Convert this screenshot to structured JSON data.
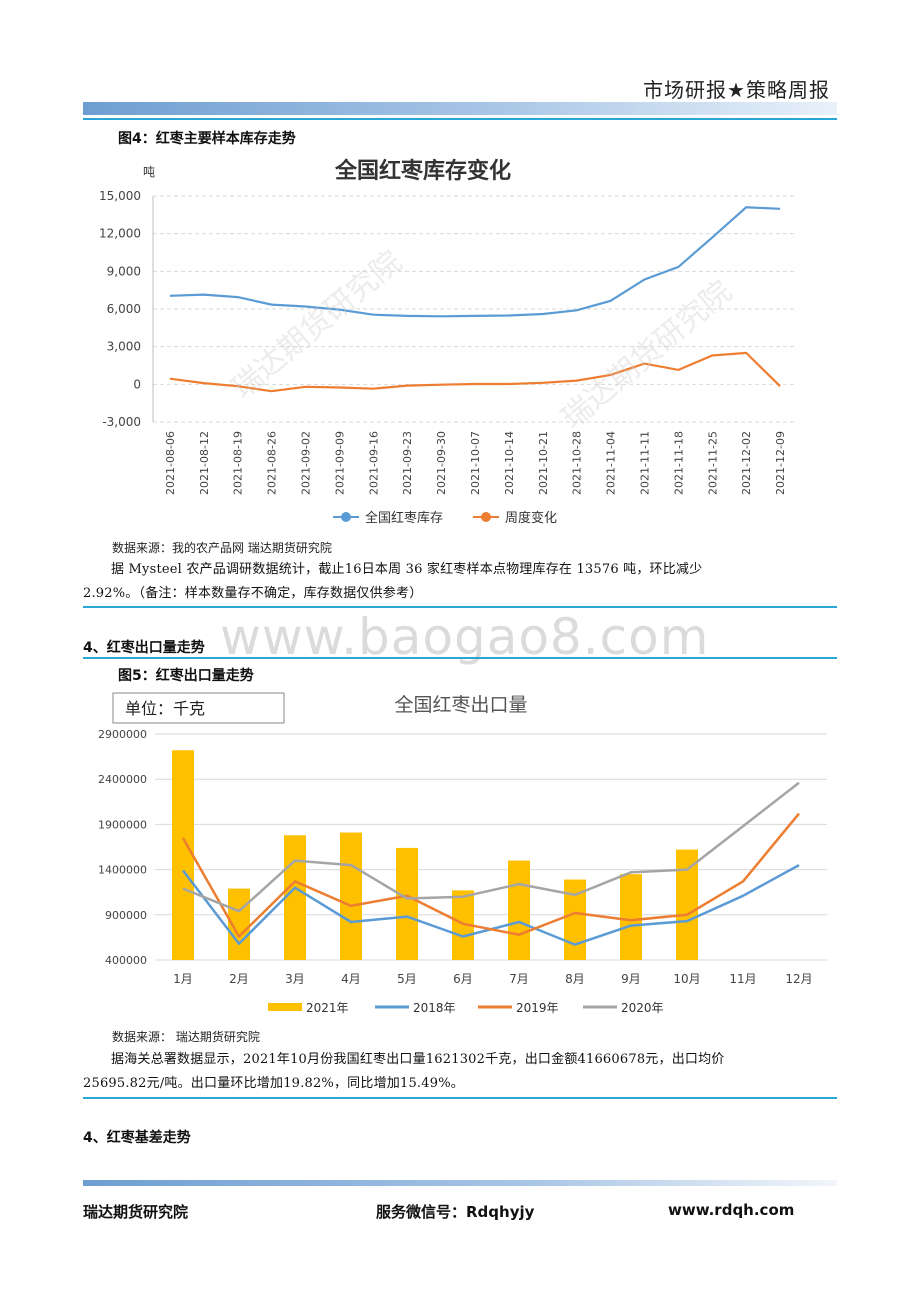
{
  "header": {
    "title": "市场研报★策略周报"
  },
  "figure4": {
    "label": "图4：红枣主要样本库存走势",
    "source": "数据来源：我的农产品网 瑞达期货研究院",
    "watermark": "瑞达期货研究院"
  },
  "paragraph1": {
    "line1": "据 Mysteel 农产品调研数据统计，截止16日本周 36 家红枣样本点物理库存在 13576 吨，环比减少",
    "line2": "2.92%。（备注：样本数量存不确定，库存数据仅供参考）"
  },
  "section_export": "4、红枣出口量走势",
  "figure5": {
    "label": "图5：红枣出口量走势",
    "source": "数据来源：  瑞达期货研究院"
  },
  "paragraph2": {
    "line1": "据海关总署数据显示，2021年10月份我国红枣出口量1621302千克，出口金额41660678元，出口均价",
    "line2": "25695.82元/吨。出口量环比增加19.82%，同比增加15.49%。"
  },
  "section_basis": "4、红枣基差走势",
  "page_watermark": "www.baogao8.com",
  "footer": {
    "left": "瑞达期货研究院",
    "center": "服务微信号：Rdqhyjy",
    "right": "www.rdqh.com"
  },
  "colors": {
    "blue": "#5b9bd5",
    "orange": "#ed7d31",
    "gray": "#a5a5a5",
    "gold": "#ffc000"
  },
  "chart_data": [
    {
      "type": "line",
      "title": "全国红枣库存变化",
      "unit_label": "吨",
      "ylim": [
        -3000,
        15000
      ],
      "yticks": [
        "15,000",
        "12,000",
        "9,000",
        "6,000",
        "3,000",
        "0",
        "-3,000"
      ],
      "ytick_values": [
        15000,
        12000,
        9000,
        6000,
        3000,
        0,
        -3000
      ],
      "grid": true,
      "legend": "bottom",
      "x": [
        "2021-08-06",
        "2021-08-12",
        "2021-08-19",
        "2021-08-26",
        "2021-09-02",
        "2021-09-09",
        "2021-09-16",
        "2021-09-23",
        "2021-09-30",
        "2021-10-07",
        "2021-10-14",
        "2021-10-21",
        "2021-10-28",
        "2021-11-04",
        "2021-11-11",
        "2021-11-18",
        "2021-11-25",
        "2021-12-02",
        "2021-12-09"
      ],
      "series": [
        {
          "name": "全国红枣库存",
          "color": "#5b9bd5",
          "values": [
            7050,
            7150,
            6950,
            6350,
            6200,
            5950,
            5550,
            5450,
            5420,
            5450,
            5480,
            5600,
            5900,
            6650,
            8350,
            9350,
            11700,
            14100,
            13980
          ]
        },
        {
          "name": "周度变化",
          "color": "#ed7d31",
          "values": [
            450,
            100,
            -150,
            -550,
            -200,
            -250,
            -350,
            -100,
            -30,
            30,
            30,
            120,
            300,
            750,
            1650,
            1150,
            2300,
            2500,
            -150
          ]
        }
      ]
    },
    {
      "type": "bar",
      "title": "全国红枣出口量",
      "unit_label": "单位：千克",
      "ylim": [
        400000,
        2900000
      ],
      "yticks": [
        "2900000",
        "2400000",
        "1900000",
        "1400000",
        "900000",
        "400000"
      ],
      "ytick_values": [
        2900000,
        2400000,
        1900000,
        1400000,
        900000,
        400000
      ],
      "grid": true,
      "legend": "bottom",
      "categories": [
        "1月",
        "2月",
        "3月",
        "4月",
        "5月",
        "6月",
        "7月",
        "8月",
        "9月",
        "10月",
        "11月",
        "12月"
      ],
      "series": [
        {
          "name": "2021年",
          "type": "bar",
          "color": "#ffc000",
          "values": [
            2720000,
            1190000,
            1780000,
            1810000,
            1640000,
            1170000,
            1500000,
            1290000,
            1350000,
            1621302,
            null,
            null
          ]
        },
        {
          "name": "2018年",
          "type": "line",
          "color": "#5b9bd5",
          "values": [
            1390000,
            580000,
            1200000,
            820000,
            880000,
            660000,
            820000,
            570000,
            780000,
            830000,
            1110000,
            1450000
          ]
        },
        {
          "name": "2019年",
          "type": "line",
          "color": "#ed7d31",
          "values": [
            1750000,
            660000,
            1270000,
            1000000,
            1110000,
            800000,
            680000,
            920000,
            840000,
            900000,
            1270000,
            2020000
          ]
        },
        {
          "name": "2020年",
          "type": "line",
          "color": "#a5a5a5",
          "values": [
            1190000,
            940000,
            1500000,
            1450000,
            1080000,
            1100000,
            1240000,
            1120000,
            1370000,
            1400000,
            1880000,
            2360000
          ]
        }
      ]
    }
  ]
}
